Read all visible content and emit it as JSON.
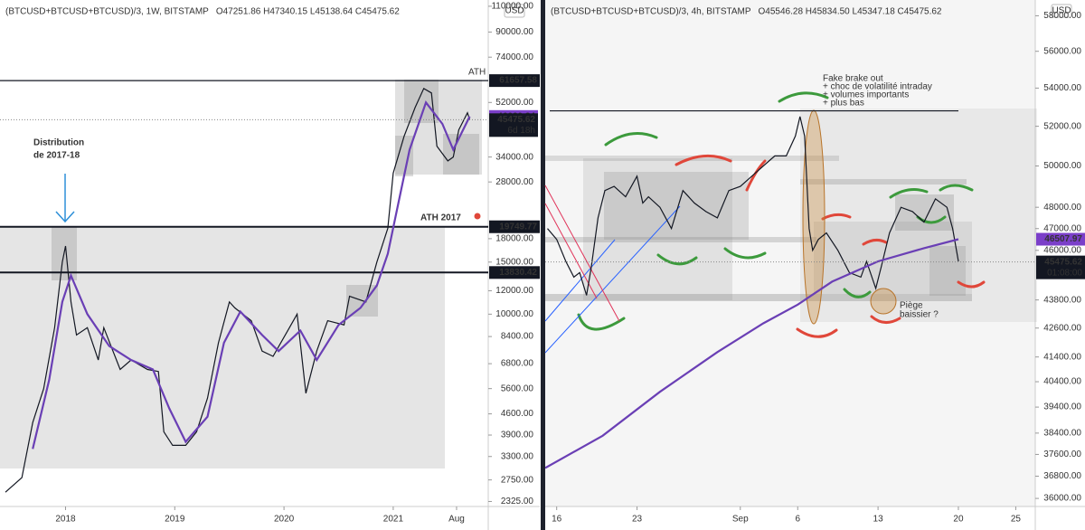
{
  "chart_data": [
    {
      "type": "line",
      "title": "(BTCUSD+BTCUSD+BTCUSD)/3, 1W, BITSTAMP",
      "ohlc": "O47251.86 H47340.15 L45138.64 C45475.62",
      "unit": "USD",
      "log_scale": true,
      "xlim": [
        2017.4,
        2021.87
      ],
      "xticks": [
        2018,
        2019,
        2020,
        2021,
        {
          "value": 2021.58,
          "label": "Aug"
        }
      ],
      "ylim": [
        2236,
        115500
      ],
      "yticks": [
        {
          "value": 110000,
          "label": "110000.00"
        },
        {
          "value": 90000,
          "label": "90000.00"
        },
        {
          "value": 74000,
          "label": "74000.00"
        },
        {
          "value": 52000,
          "label": "52000.00"
        },
        {
          "value": 34000,
          "label": "34000.00"
        },
        {
          "value": 28000,
          "label": "28000.00"
        },
        {
          "value": 18000,
          "label": "18000.00"
        },
        {
          "value": 15000,
          "label": "15000.00"
        },
        {
          "value": 12000,
          "label": "12000.00"
        },
        {
          "value": 10000,
          "label": "10000.00"
        },
        {
          "value": 8400,
          "label": "8400.00"
        },
        {
          "value": 6800,
          "label": "6800.00"
        },
        {
          "value": 5600,
          "label": "5600.00"
        },
        {
          "value": 4600,
          "label": "4600.00"
        },
        {
          "value": 3900,
          "label": "3900.00"
        },
        {
          "value": 3300,
          "label": "3300.00"
        },
        {
          "value": 2750,
          "label": "2750.00"
        },
        {
          "value": 2325,
          "label": "2325.00"
        }
      ],
      "levels": [
        61657.58,
        19749.77,
        13830.42
      ],
      "price_markers": [
        {
          "value": 46620.34,
          "color": "#7b3fc9"
        },
        {
          "value": 45475.62,
          "color": "#131722"
        }
      ],
      "countdown": "6d 18h",
      "annotations": [
        "Distribution",
        "de 2017-18",
        "ATH",
        "ATH 2017"
      ],
      "series": [
        {
          "color": "#131722",
          "x": [
            2017.45,
            2017.6,
            2017.7,
            2017.8,
            2017.9,
            2017.97,
            2018.0,
            2018.05,
            2018.1,
            2018.2,
            2018.3,
            2018.35,
            2018.5,
            2018.6,
            2018.75,
            2018.85,
            2018.9,
            2018.98,
            2019.1,
            2019.2,
            2019.3,
            2019.4,
            2019.5,
            2019.55,
            2019.7,
            2019.8,
            2019.9,
            2020.05,
            2020.12,
            2020.2,
            2020.3,
            2020.4,
            2020.55,
            2020.6,
            2020.75,
            2020.85,
            2020.95,
            2021.0,
            2021.1,
            2021.2,
            2021.28,
            2021.35,
            2021.4,
            2021.5,
            2021.55,
            2021.6,
            2021.68,
            2021.7
          ],
          "values": [
            2500,
            2800,
            4300,
            5600,
            9000,
            15000,
            17000,
            11000,
            8500,
            9000,
            7000,
            9000,
            6500,
            7000,
            6500,
            6400,
            4000,
            3600,
            3600,
            4000,
            5200,
            8000,
            11000,
            10500,
            9500,
            7500,
            7200,
            9000,
            10000,
            5400,
            7500,
            9500,
            9200,
            11500,
            11000,
            15000,
            19500,
            30000,
            40000,
            50000,
            58000,
            56000,
            37000,
            33000,
            34000,
            42000,
            48000,
            45475
          ]
        },
        {
          "color": "#6a3fb5",
          "x": [
            2017.7,
            2017.85,
            2017.97,
            2018.05,
            2018.2,
            2018.4,
            2018.6,
            2018.8,
            2018.95,
            2019.1,
            2019.3,
            2019.45,
            2019.6,
            2019.8,
            2019.95,
            2020.15,
            2020.3,
            2020.5,
            2020.7,
            2020.85,
            2020.95,
            2021.05,
            2021.15,
            2021.3,
            2021.45,
            2021.55,
            2021.7
          ],
          "values": [
            3500,
            6000,
            11000,
            13500,
            10000,
            7800,
            7000,
            6500,
            4800,
            3700,
            4500,
            8000,
            10200,
            8500,
            7500,
            8800,
            7000,
            9200,
            10500,
            12500,
            16000,
            24000,
            36000,
            52000,
            44000,
            36000,
            46620
          ]
        }
      ]
    },
    {
      "type": "line",
      "title": "(BTCUSD+BTCUSD+BTCUSD)/3, 4h, BITSTAMP",
      "ohlc": "O45546.28 H45834.50 L45347.18 C45475.62",
      "unit": "USD",
      "log_scale": true,
      "xlim": [
        15,
        57.7
      ],
      "xticks": [
        16,
        23,
        {
          "value": 32,
          "label": "Sep"
        },
        {
          "value": 37,
          "label": "6"
        },
        {
          "value": 44,
          "label": "13"
        },
        {
          "value": 51,
          "label": "20"
        },
        {
          "value": 56,
          "label": "25"
        }
      ],
      "ylim": [
        35714,
        58911
      ],
      "yticks": [
        {
          "value": 58000,
          "label": "58000.00"
        },
        {
          "value": 56000,
          "label": "56000.00"
        },
        {
          "value": 54000,
          "label": "54000.00"
        },
        {
          "value": 52000,
          "label": "52000.00"
        },
        {
          "value": 50000,
          "label": "50000.00"
        },
        {
          "value": 48000,
          "label": "48000.00"
        },
        {
          "value": 47000,
          "label": "47000.00"
        },
        {
          "value": 46000,
          "label": "46000.00"
        },
        {
          "value": 43800,
          "label": "43800.00"
        },
        {
          "value": 42600,
          "label": "42600.00"
        },
        {
          "value": 41400,
          "label": "41400.00"
        },
        {
          "value": 40400,
          "label": "40400.00"
        },
        {
          "value": 39400,
          "label": "39400.00"
        },
        {
          "value": 38400,
          "label": "38400.00"
        },
        {
          "value": 37600,
          "label": "37600.00"
        },
        {
          "value": 36800,
          "label": "36800.00"
        },
        {
          "value": 36000,
          "label": "36000.00"
        }
      ],
      "hlines": [
        52800
      ],
      "price_markers": [
        {
          "value": 46507.97,
          "color": "#7b3fc9"
        },
        {
          "value": 45475.62,
          "color": "#131722"
        }
      ],
      "countdown": "01:08:00",
      "annotations": [
        "Fake brake out",
        "+ choc de volatilité intraday",
        "+ volumes importants",
        "+ plus bas",
        "Piège",
        "baissier ?"
      ],
      "series": [
        {
          "color": "#131722",
          "x": [
            15.2,
            16,
            16.8,
            17.5,
            18,
            18.6,
            19,
            19.6,
            20.2,
            21,
            22,
            23,
            23.5,
            24,
            25,
            26,
            27,
            28,
            29,
            30,
            31,
            32,
            33,
            34,
            35,
            36,
            36.8,
            37.2,
            37.6,
            38.0,
            38.3,
            38.8,
            39.5,
            40.5,
            41.5,
            42.5,
            43,
            43.8,
            44.3,
            45,
            46,
            47,
            48,
            49,
            50,
            50.5,
            51
          ],
          "values": [
            47000,
            46500,
            45500,
            44800,
            45000,
            44000,
            45200,
            47500,
            48800,
            49000,
            48500,
            49500,
            48200,
            48500,
            48000,
            47000,
            48800,
            48200,
            47800,
            47500,
            48800,
            49000,
            49500,
            50000,
            50500,
            50500,
            51500,
            52500,
            51500,
            47000,
            46000,
            46500,
            46800,
            46000,
            45000,
            44800,
            45500,
            44300,
            45300,
            46800,
            48000,
            47800,
            47300,
            48400,
            48000,
            47000,
            45500
          ]
        },
        {
          "color": "#6a3fb5",
          "x": [
            15,
            20,
            25,
            30,
            34,
            37,
            40,
            44,
            48,
            51
          ],
          "values": [
            37100,
            38300,
            40000,
            41600,
            42800,
            43600,
            44600,
            45500,
            46100,
            46507
          ]
        }
      ]
    }
  ]
}
